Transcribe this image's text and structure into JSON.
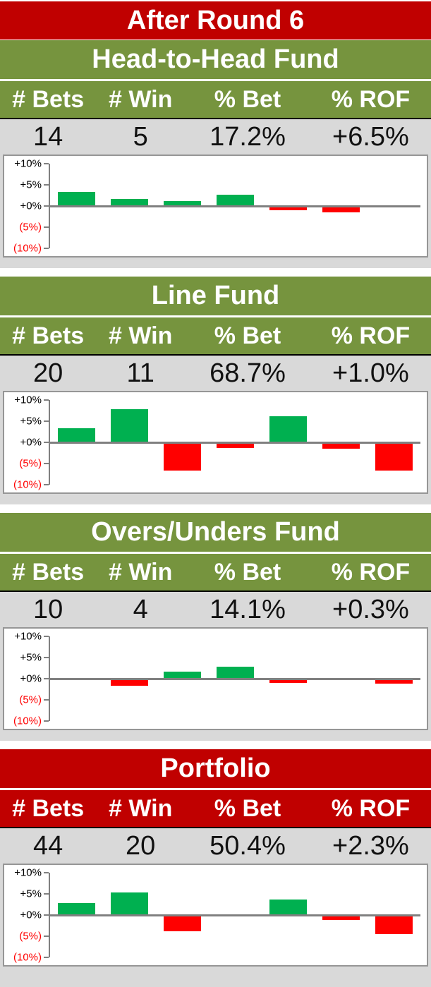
{
  "header": {
    "title": "After Round 6"
  },
  "columns": [
    "# Bets",
    "# Win",
    "% Bet",
    "% ROF"
  ],
  "axis_ticks": [
    "+10%",
    "+5%",
    "+0%",
    "(5%)",
    "(10%)"
  ],
  "sections": [
    {
      "title": "Head-to-Head Fund",
      "theme": "green",
      "stats": {
        "bets": "14",
        "win": "5",
        "pct_bet": "17.2%",
        "pct_rof": "+6.5%"
      }
    },
    {
      "title": "Line Fund",
      "theme": "green",
      "stats": {
        "bets": "20",
        "win": "11",
        "pct_bet": "68.7%",
        "pct_rof": "+1.0%"
      }
    },
    {
      "title": "Overs/Unders Fund",
      "theme": "green",
      "stats": {
        "bets": "10",
        "win": "4",
        "pct_bet": "14.1%",
        "pct_rof": "+0.3%"
      }
    },
    {
      "title": "Portfolio",
      "theme": "red",
      "stats": {
        "bets": "44",
        "win": "20",
        "pct_bet": "50.4%",
        "pct_rof": "+2.3%"
      }
    }
  ],
  "chart_data": [
    {
      "type": "bar",
      "title": "Head-to-Head Fund round returns (%)",
      "values": [
        3.4,
        1.6,
        1.1,
        2.7,
        -1.0,
        -1.5,
        0
      ],
      "ylim": [
        -10,
        10
      ],
      "yticks": [
        "+10%",
        "+5%",
        "+0%",
        "(5%)",
        "(10%)"
      ],
      "grid": false,
      "legend": "none",
      "positive_color": "#00B050",
      "negative_color": "#FF0000"
    },
    {
      "type": "bar",
      "title": "Line Fund round returns (%)",
      "values": [
        3.3,
        7.8,
        -6.7,
        -1.3,
        6.1,
        -1.5,
        -6.7
      ],
      "ylim": [
        -10,
        10
      ],
      "yticks": [
        "+10%",
        "+5%",
        "+0%",
        "(5%)",
        "(10%)"
      ],
      "grid": false,
      "legend": "none",
      "positive_color": "#00B050",
      "negative_color": "#FF0000"
    },
    {
      "type": "bar",
      "title": "Overs/Unders Fund round returns (%)",
      "values": [
        -0.1,
        -1.6,
        1.6,
        2.9,
        -1.0,
        0,
        -1.2
      ],
      "ylim": [
        -10,
        10
      ],
      "yticks": [
        "+10%",
        "+5%",
        "+0%",
        "(5%)",
        "(10%)"
      ],
      "grid": false,
      "legend": "none",
      "positive_color": "#00B050",
      "negative_color": "#FF0000"
    },
    {
      "type": "bar",
      "title": "Portfolio round returns (%)",
      "values": [
        2.9,
        5.3,
        -3.8,
        0,
        3.6,
        -1.2,
        -4.5
      ],
      "ylim": [
        -10,
        10
      ],
      "yticks": [
        "+10%",
        "+5%",
        "+0%",
        "(5%)",
        "(10%)"
      ],
      "grid": false,
      "legend": "none",
      "positive_color": "#00B050",
      "negative_color": "#FF0000"
    }
  ],
  "colors": {
    "header_red": "#C00000",
    "header_green": "#76943E",
    "row_gray": "#D9D9D9",
    "bar_positive": "#00B050",
    "bar_negative": "#FF0000",
    "axis_gray": "#808080"
  }
}
